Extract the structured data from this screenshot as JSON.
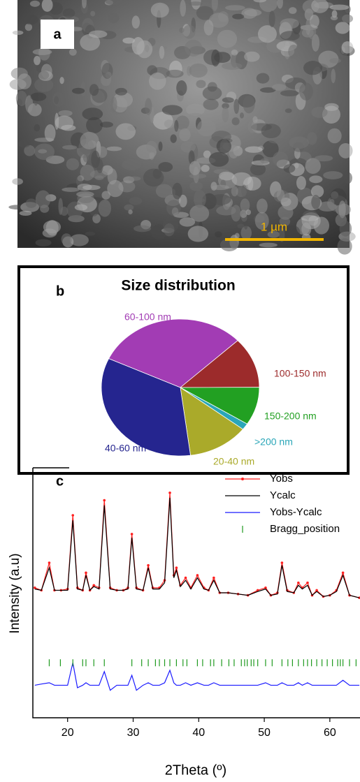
{
  "image_panel": {
    "label": "a",
    "scale_bar": "1 µm"
  },
  "chart_data": [
    {
      "type": "pie",
      "label": "b",
      "title": "Size distribution",
      "categories": [
        "60-100 nm",
        "100-150 nm",
        "150-200 nm",
        ">200 nm",
        "20-40 nm",
        "40-60 nm"
      ],
      "values": [
        31,
        12,
        9,
        1.5,
        12.5,
        34
      ],
      "colors": [
        "#a23cb4",
        "#9c2b2b",
        "#22a022",
        "#2aa6b8",
        "#aaaa2a",
        "#25258f"
      ]
    },
    {
      "type": "line",
      "label": "c",
      "xlabel": "2Theta (º)",
      "ylabel": "Intensity (a.u)",
      "x": [
        15,
        16,
        17.2,
        18,
        19,
        20,
        20.8,
        21.5,
        22.3,
        22.8,
        23.4,
        24,
        24.8,
        25.6,
        26.5,
        27.5,
        28.5,
        29.2,
        29.8,
        30.5,
        31.5,
        32.3,
        33,
        34,
        34.8,
        35.6,
        36.2,
        36.6,
        37.2,
        38,
        38.8,
        39.8,
        40.8,
        41.5,
        42.3,
        43.2,
        44.5,
        46,
        47.5,
        49,
        50.2,
        51,
        52,
        52.7,
        53.5,
        54.5,
        55.2,
        55.8,
        56.6,
        57.3,
        58,
        59,
        60,
        61,
        62,
        63,
        64.5
      ],
      "series": [
        {
          "name": "Yobs",
          "color": "#ff2020",
          "markers": true,
          "values": [
            52,
            51,
            62,
            51,
            51,
            51.5,
            81,
            52,
            51,
            58,
            51,
            53,
            52,
            87,
            52,
            51,
            51,
            52,
            73.5,
            52,
            51,
            61,
            52,
            52,
            55,
            90,
            57,
            60,
            53,
            56,
            52,
            57,
            52,
            51,
            56,
            50,
            50,
            49.5,
            49,
            51,
            52,
            49,
            50,
            62,
            51,
            50,
            54,
            52,
            54,
            49,
            51,
            48.5,
            49,
            51,
            58,
            49,
            48
          ]
        },
        {
          "name": "Ycalc",
          "color": "#000000",
          "values": [
            51.5,
            51,
            60,
            51,
            51,
            51,
            79,
            51.5,
            51,
            57,
            51,
            52.5,
            51.5,
            85,
            51.5,
            51,
            51,
            51.5,
            72,
            51.5,
            51,
            60,
            51.5,
            51.5,
            54,
            88,
            56,
            59,
            52.5,
            55,
            51.5,
            56,
            51.5,
            51,
            55,
            50,
            50,
            49.5,
            49,
            50.5,
            51.5,
            49,
            49.5,
            61,
            50.5,
            50,
            53,
            51.5,
            53,
            49,
            50.5,
            48.5,
            49,
            50.5,
            57,
            49,
            48
          ]
        },
        {
          "name": "Yobs-Ycalc",
          "color": "#1a1aff",
          "values": [
            13,
            13.5,
            14,
            13,
            13,
            13,
            22,
            12,
            13,
            14,
            13,
            13,
            13,
            18.5,
            11,
            13,
            13,
            13,
            17,
            11,
            13,
            14,
            13,
            13,
            14,
            19,
            14,
            13,
            13,
            14,
            13,
            14,
            13,
            13,
            14,
            13,
            13,
            13,
            13,
            13,
            14,
            13,
            13,
            14,
            13,
            13,
            14,
            13,
            14,
            13,
            13,
            13,
            13,
            13,
            15,
            13,
            13
          ]
        },
        {
          "name": "Bragg_position",
          "color": "#1f9a1f",
          "ticks": true,
          "x": [
            17.2,
            18.9,
            20.8,
            22.3,
            22.8,
            24,
            25.6,
            29.8,
            31.3,
            32.3,
            33.4,
            34,
            34.8,
            35.6,
            36.6,
            37.6,
            38.2,
            39.8,
            40.6,
            41.8,
            42.3,
            43.5,
            44.6,
            45.4,
            46.5,
            47,
            47.4,
            48,
            48.4,
            49,
            50.2,
            51.2,
            52.7,
            53.6,
            54.3,
            55.2,
            56,
            56.6,
            57.2,
            58,
            58.8,
            59.6,
            60.4,
            61.2,
            61.6,
            62,
            63,
            64
          ],
          "values": [
            22,
            22,
            22,
            22,
            22,
            22,
            22,
            22,
            22,
            22,
            22,
            22,
            22,
            22,
            22,
            22,
            22,
            22,
            22,
            22,
            22,
            22,
            22,
            22,
            22,
            22,
            22,
            22,
            22,
            22,
            22,
            22,
            22,
            22,
            22,
            22,
            22,
            22,
            22,
            22,
            22,
            22,
            22,
            22,
            22,
            22,
            22,
            22
          ]
        }
      ],
      "xlim": [
        14.7,
        64.6
      ],
      "xticks": [
        20,
        30,
        40,
        50,
        60
      ],
      "ylim": [
        0,
        100
      ]
    }
  ]
}
